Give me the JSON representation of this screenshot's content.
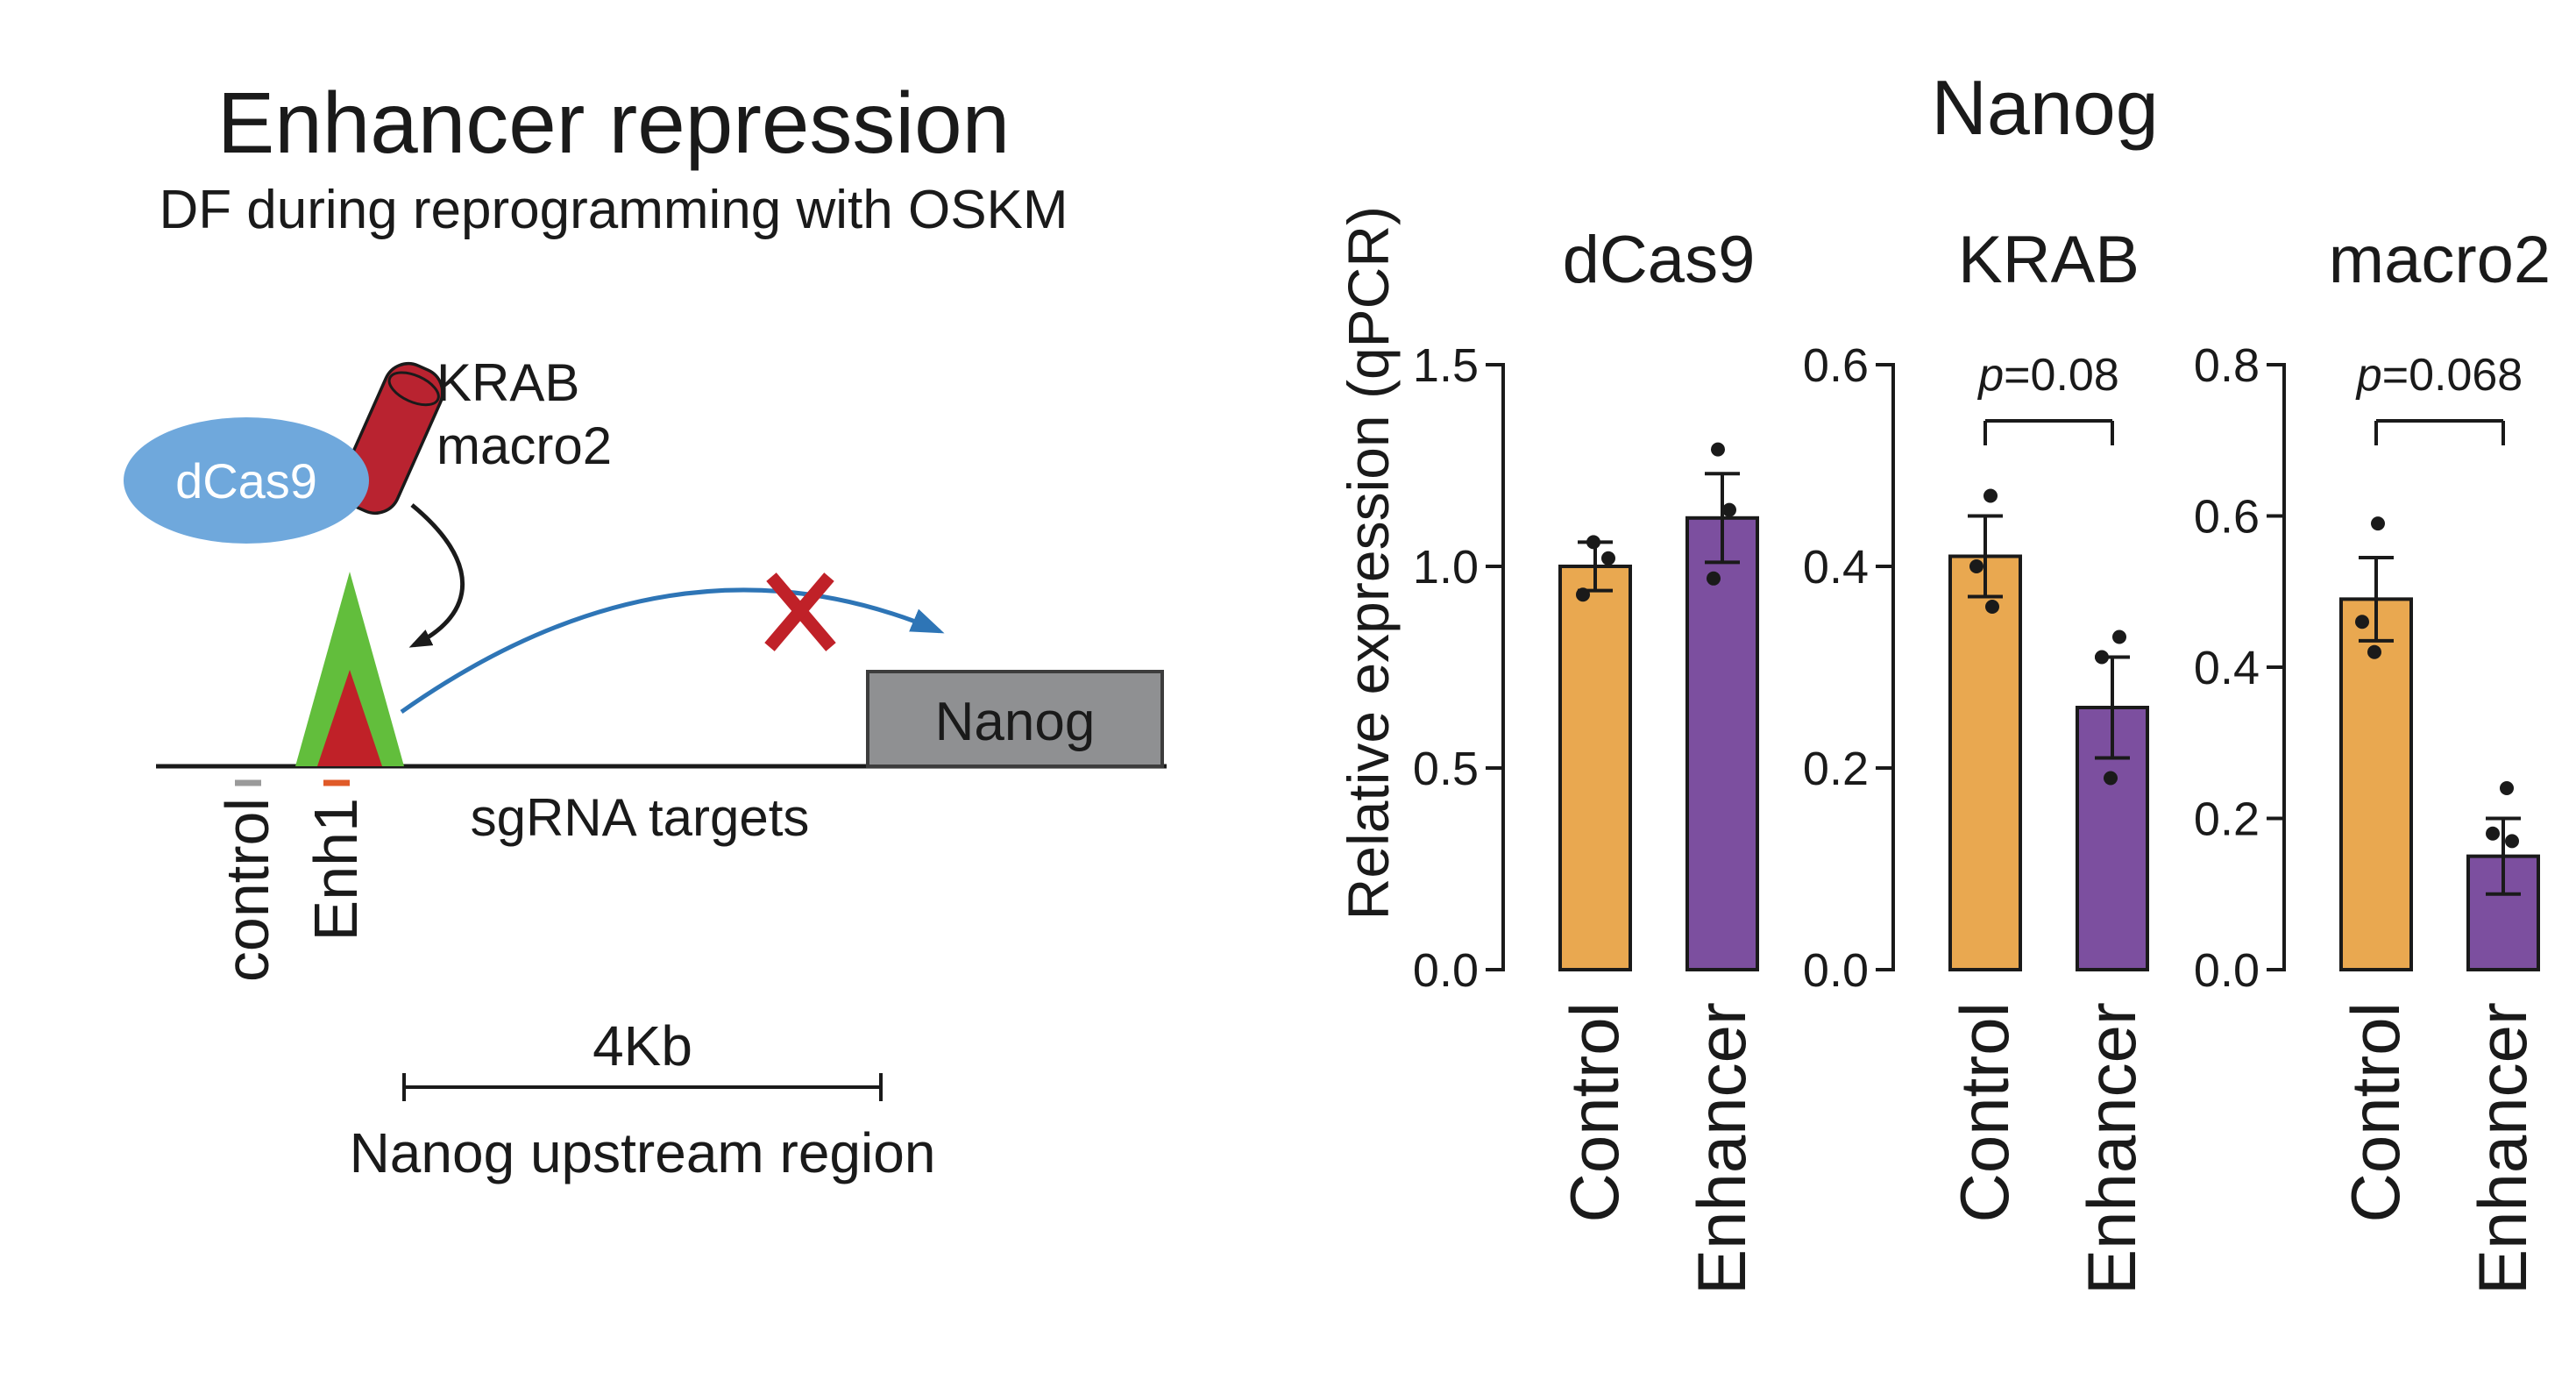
{
  "diagram": {
    "title": "Enhancer repression",
    "subtitle": "DF during reprogramming with OSKM",
    "dcas9_label": "dCas9",
    "effector_line1": "KRAB",
    "effector_line2": "macro2",
    "gene_box_label": "Nanog",
    "track_control_label": "control",
    "track_enh1_label": "Enh1",
    "sgrna_label": "sgRNA targets",
    "scale_label": "4Kb",
    "region_label": "Nanog upstream region",
    "colors": {
      "dcas9_ellipse": "#6FA8DC",
      "effector_cylinder": "#B92330",
      "enhancer_triangle": "#62BE3C",
      "target_triangle": "#C02128",
      "gene_box_fill": "#8F9092",
      "gene_box_stroke": "#3d3d3d",
      "blue_arrow": "#2E75B6",
      "blocked_cross": "#C02128",
      "control_tick": "#9A9A9A",
      "enh1_tick": "#E05A28"
    }
  },
  "figure": {
    "title": "Nanog",
    "y_axis_label": "Relative expression (qPCR)"
  },
  "chart_data": [
    {
      "type": "bar",
      "title": "dCas9",
      "categories": [
        "Control",
        "Enhancer"
      ],
      "values": [
        1.0,
        1.12
      ],
      "errors": [
        0.06,
        0.11
      ],
      "points": [
        [
          0.93,
          1.02,
          1.06
        ],
        [
          1.29,
          1.14,
          0.97
        ]
      ],
      "point_offsets": [
        [
          -14,
          15,
          -2
        ],
        [
          -5,
          8,
          -10
        ]
      ],
      "ylim": [
        0,
        1.5
      ],
      "yticks": [
        "0.0",
        "0.5",
        "1.0",
        "1.5"
      ],
      "p_text": null,
      "bar_colors": [
        "#E9A850",
        "#7C4F9F"
      ],
      "legend": "none",
      "grid": false
    },
    {
      "type": "bar",
      "title": "KRAB",
      "categories": [
        "Control",
        "Enhancer"
      ],
      "values": [
        0.41,
        0.26
      ],
      "errors": [
        0.04,
        0.05
      ],
      "points": [
        [
          0.47,
          0.4,
          0.36
        ],
        [
          0.33,
          0.31,
          0.19
        ]
      ],
      "point_offsets": [
        [
          6,
          -10,
          8
        ],
        [
          8,
          -12,
          -2
        ]
      ],
      "ylim": [
        0,
        0.6
      ],
      "yticks": [
        "0.0",
        "0.2",
        "0.4",
        "0.6"
      ],
      "p_text": "p=0.08",
      "bar_colors": [
        "#E9A850",
        "#7C4F9F"
      ],
      "legend": "none",
      "grid": false
    },
    {
      "type": "bar",
      "title": "macro2",
      "categories": [
        "Control",
        "Enhancer"
      ],
      "values": [
        0.49,
        0.15
      ],
      "errors": [
        0.055,
        0.05
      ],
      "points": [
        [
          0.59,
          0.46,
          0.42
        ],
        [
          0.24,
          0.18,
          0.17
        ]
      ],
      "point_offsets": [
        [
          2,
          -16,
          -2
        ],
        [
          4,
          -12,
          10
        ]
      ],
      "ylim": [
        0,
        0.8
      ],
      "yticks": [
        "0.0",
        "0.2",
        "0.4",
        "0.6",
        "0.8"
      ],
      "p_text": "p=0.068",
      "bar_colors": [
        "#E9A850",
        "#7C4F9F"
      ],
      "legend": "none",
      "grid": false
    }
  ]
}
